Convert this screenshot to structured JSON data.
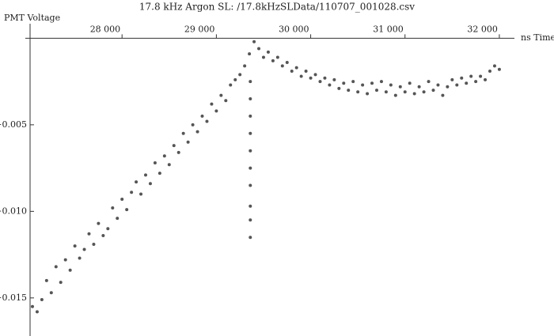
{
  "chart_data": {
    "type": "scatter",
    "title": "17.8 kHz Argon SL:  /17.8kHzSLData/110707_001028.csv",
    "x_label": "ns Time",
    "y_label": "PMT Voltage",
    "color": "#555555",
    "x": [
      27050,
      27100,
      27150,
      27200,
      27250,
      27300,
      27350,
      27400,
      27450,
      27500,
      27550,
      27600,
      27650,
      27700,
      27750,
      27800,
      27850,
      27900,
      27950,
      28000,
      28050,
      28100,
      28150,
      28200,
      28250,
      28300,
      28350,
      28400,
      28450,
      28500,
      28550,
      28600,
      28650,
      28700,
      28750,
      28800,
      28850,
      28900,
      28950,
      29000,
      29050,
      29100,
      29150,
      29200,
      29250,
      29300,
      29350,
      29400,
      29450,
      29500,
      29550,
      29600,
      29650,
      29700,
      29750,
      29800,
      29850,
      29900,
      29950,
      30000,
      30050,
      30100,
      30150,
      30200,
      30250,
      30300,
      30350,
      30400,
      30450,
      30500,
      30550,
      30600,
      30650,
      30700,
      30750,
      30800,
      30850,
      30900,
      30950,
      31000,
      31050,
      31100,
      31150,
      31200,
      31250,
      31300,
      31350,
      31400,
      31450,
      31500,
      31550,
      31600,
      31650,
      31700,
      31750,
      31800,
      31850,
      31900,
      31950,
      32000,
      29360,
      29360,
      29360,
      29360,
      29360,
      29360,
      29360,
      29360,
      29360,
      29360
    ],
    "values": [
      -0.0155,
      -0.0158,
      -0.0151,
      -0.014,
      -0.0147,
      -0.0132,
      -0.0141,
      -0.0128,
      -0.0134,
      -0.012,
      -0.0127,
      -0.0122,
      -0.0113,
      -0.0119,
      -0.0107,
      -0.0114,
      -0.011,
      -0.0098,
      -0.0104,
      -0.0093,
      -0.0099,
      -0.0089,
      -0.0083,
      -0.009,
      -0.0079,
      -0.0084,
      -0.0072,
      -0.0078,
      -0.0068,
      -0.0073,
      -0.0062,
      -0.0066,
      -0.0055,
      -0.006,
      -0.005,
      -0.0054,
      -0.0045,
      -0.0048,
      -0.0038,
      -0.0042,
      -0.0033,
      -0.0036,
      -0.0027,
      -0.0024,
      -0.0021,
      -0.0016,
      -0.0009,
      -0.0002,
      -0.0006,
      -0.0011,
      -0.0008,
      -0.0013,
      -0.0011,
      -0.0016,
      -0.0014,
      -0.0019,
      -0.0017,
      -0.0022,
      -0.0019,
      -0.0023,
      -0.0021,
      -0.0025,
      -0.0023,
      -0.0027,
      -0.0024,
      -0.0029,
      -0.0026,
      -0.003,
      -0.0025,
      -0.0031,
      -0.0027,
      -0.0032,
      -0.0026,
      -0.003,
      -0.0025,
      -0.0031,
      -0.0027,
      -0.0033,
      -0.0028,
      -0.0031,
      -0.0026,
      -0.0032,
      -0.0028,
      -0.0031,
      -0.0025,
      -0.003,
      -0.0027,
      -0.0033,
      -0.0028,
      -0.0024,
      -0.0027,
      -0.0023,
      -0.0026,
      -0.0022,
      -0.0025,
      -0.0022,
      -0.0024,
      -0.0019,
      -0.0016,
      -0.0018,
      -0.0025,
      -0.0035,
      -0.0045,
      -0.0055,
      -0.0065,
      -0.0075,
      -0.0085,
      -0.0097,
      -0.0105,
      -0.0115
    ],
    "xlim": [
      27025,
      32160
    ],
    "ylim": [
      -0.0172,
      0.0002
    ],
    "xticks": [
      {
        "value": 28000,
        "label": "28 000"
      },
      {
        "value": 29000,
        "label": "29 000"
      },
      {
        "value": 30000,
        "label": "30 000"
      },
      {
        "value": 31000,
        "label": "31 000"
      },
      {
        "value": 32000,
        "label": "32 000"
      }
    ],
    "yticks": [
      {
        "value": -0.005,
        "label": "−0.005"
      },
      {
        "value": -0.01,
        "label": "−0.010"
      },
      {
        "value": -0.015,
        "label": "−0.015"
      }
    ]
  }
}
